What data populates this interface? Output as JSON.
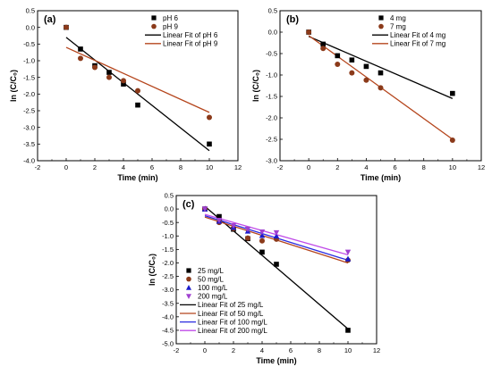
{
  "chart_data": [
    {
      "type": "scatter",
      "panel_label": "(a)",
      "xlabel": "Time (min)",
      "ylabel": "ln (C/C₀)",
      "xlim": [
        -2,
        12
      ],
      "ylim": [
        -4.0,
        0.5
      ],
      "x_ticks": [
        -2,
        0,
        2,
        4,
        6,
        8,
        10,
        12
      ],
      "y_ticks": [
        0.5,
        0.0,
        -0.5,
        -1.0,
        -1.5,
        -2.0,
        -2.5,
        -3.0,
        -3.5,
        -4.0
      ],
      "legend_position": "top-right",
      "series": [
        {
          "name": "pH 6",
          "marker": "square",
          "color": "#000000",
          "x": [
            0,
            1,
            2,
            3,
            4,
            5,
            10
          ],
          "y": [
            0.0,
            -0.65,
            -1.15,
            -1.35,
            -1.7,
            -2.33,
            -3.5
          ]
        },
        {
          "name": "pH 9",
          "marker": "circle",
          "color": "#8b3a1a",
          "x": [
            0,
            1,
            2,
            3,
            4,
            5,
            10
          ],
          "y": [
            0.0,
            -0.93,
            -1.2,
            -1.5,
            -1.6,
            -1.9,
            -2.7
          ]
        }
      ],
      "fits": [
        {
          "name": "Linear Fit of pH 6",
          "color": "#000000",
          "x": [
            0,
            10
          ],
          "y": [
            -0.3,
            -3.7
          ]
        },
        {
          "name": "Linear Fit of pH 9",
          "color": "#b5451c",
          "x": [
            0,
            10
          ],
          "y": [
            -0.6,
            -2.55
          ]
        }
      ]
    },
    {
      "type": "scatter",
      "panel_label": "(b)",
      "xlabel": "Time (min)",
      "ylabel": "ln (C/C₀)",
      "xlim": [
        -2,
        12
      ],
      "ylim": [
        -3.0,
        0.5
      ],
      "x_ticks": [
        -2,
        0,
        2,
        4,
        6,
        8,
        10,
        12
      ],
      "y_ticks": [
        0.5,
        0.0,
        -0.5,
        -1.0,
        -1.5,
        -2.0,
        -2.5,
        -3.0
      ],
      "legend_position": "top-right",
      "series": [
        {
          "name": "4 mg",
          "marker": "square",
          "color": "#000000",
          "x": [
            0,
            1,
            2,
            3,
            4,
            5,
            10
          ],
          "y": [
            0.0,
            -0.28,
            -0.55,
            -0.65,
            -0.8,
            -0.95,
            -1.43
          ]
        },
        {
          "name": "7 mg",
          "marker": "circle",
          "color": "#8b3a1a",
          "x": [
            0,
            1,
            2,
            3,
            4,
            5,
            10
          ],
          "y": [
            0.0,
            -0.38,
            -0.75,
            -0.95,
            -1.12,
            -1.3,
            -2.52
          ]
        }
      ],
      "fits": [
        {
          "name": "Linear Fit of 4 mg",
          "color": "#000000",
          "x": [
            0,
            10
          ],
          "y": [
            -0.1,
            -1.55
          ]
        },
        {
          "name": "Linear Fit of 7 mg",
          "color": "#b5451c",
          "x": [
            0,
            10
          ],
          "y": [
            -0.08,
            -2.5
          ]
        }
      ]
    },
    {
      "type": "scatter",
      "panel_label": "(c)",
      "xlabel": "Time (min)",
      "ylabel": "ln (C/C₀)",
      "xlim": [
        -2,
        12
      ],
      "ylim": [
        -5.0,
        0.5
      ],
      "x_ticks": [
        -2,
        0,
        2,
        4,
        6,
        8,
        10,
        12
      ],
      "y_ticks": [
        0.5,
        0.0,
        -0.5,
        -1.0,
        -1.5,
        -2.0,
        -2.5,
        -3.0,
        -3.5,
        -4.0,
        -4.5,
        -5.0
      ],
      "legend_position": "bottom-left",
      "series": [
        {
          "name": "25 mg/L",
          "marker": "square",
          "color": "#000000",
          "x": [
            0,
            1,
            2,
            3,
            4,
            5,
            10
          ],
          "y": [
            0.0,
            -0.28,
            -0.75,
            -1.1,
            -1.6,
            -2.05,
            -4.5
          ]
        },
        {
          "name": "50 mg/L",
          "marker": "circle",
          "color": "#8b3a1a",
          "x": [
            0,
            1,
            2,
            3,
            4,
            5,
            10
          ],
          "y": [
            0.0,
            -0.5,
            -0.72,
            -1.08,
            -1.18,
            -1.12,
            -1.9
          ]
        },
        {
          "name": "100 mg/L",
          "marker": "triangle-up",
          "color": "#1a1acc",
          "x": [
            0,
            1,
            2,
            3,
            4,
            5,
            10
          ],
          "y": [
            0.0,
            -0.45,
            -0.68,
            -0.82,
            -0.98,
            -1.0,
            -1.85
          ]
        },
        {
          "name": "200 mg/L",
          "marker": "triangle-down",
          "color": "#a040d0",
          "x": [
            0,
            1,
            2,
            3,
            4,
            5,
            10
          ],
          "y": [
            0.0,
            -0.42,
            -0.62,
            -0.75,
            -0.85,
            -0.88,
            -1.6
          ]
        }
      ],
      "fits": [
        {
          "name": "Linear Fit of 25 mg/L",
          "color": "#000000",
          "x": [
            0,
            10
          ],
          "y": [
            0.1,
            -4.45
          ]
        },
        {
          "name": "Linear Fit of 50 mg/L",
          "color": "#b5451c",
          "x": [
            0,
            10
          ],
          "y": [
            -0.3,
            -2.0
          ]
        },
        {
          "name": "Linear Fit of 100 mg/L",
          "color": "#2a2ae0",
          "x": [
            0,
            10
          ],
          "y": [
            -0.25,
            -1.9
          ]
        },
        {
          "name": "Linear Fit of 200 mg/L",
          "color": "#c04be8",
          "x": [
            0,
            10
          ],
          "y": [
            -0.2,
            -1.7
          ]
        }
      ]
    }
  ]
}
